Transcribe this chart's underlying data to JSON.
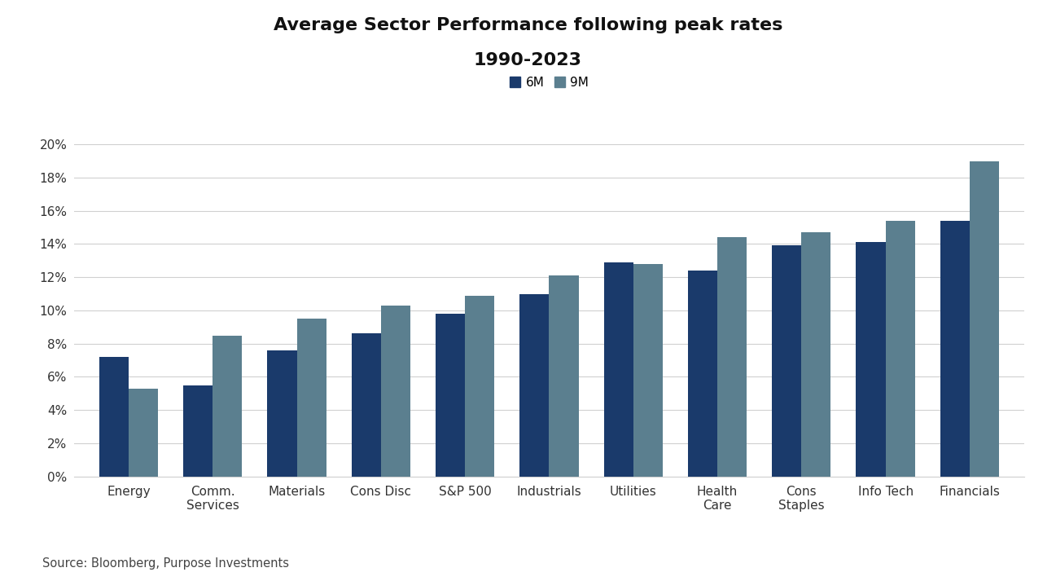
{
  "title_line1": "Average Sector Performance following peak rates",
  "title_line2": "1990-2023",
  "categories": [
    "Energy",
    "Comm.\nServices",
    "Materials",
    "Cons Disc",
    "S&P 500",
    "Industrials",
    "Utilities",
    "Health\nCare",
    "Cons\nStaples",
    "Info Tech",
    "Financials"
  ],
  "values_6m": [
    7.2,
    5.5,
    7.6,
    8.6,
    9.8,
    11.0,
    12.9,
    12.4,
    13.9,
    14.1,
    15.4
  ],
  "values_9m": [
    5.3,
    8.5,
    9.5,
    10.3,
    10.9,
    12.1,
    12.8,
    14.4,
    14.7,
    15.4,
    19.0
  ],
  "color_6m": "#1a3a6b",
  "color_9m": "#5b7f8f",
  "ylabel_ticks": [
    0,
    2,
    4,
    6,
    8,
    10,
    12,
    14,
    16,
    18,
    20
  ],
  "ylabel_labels": [
    "0%",
    "2%",
    "4%",
    "6%",
    "8%",
    "10%",
    "12%",
    "14%",
    "16%",
    "18%",
    "20%"
  ],
  "ylim": [
    0,
    21
  ],
  "legend_6m": "6M",
  "legend_9m": "9M",
  "source_text": "Source: Bloomberg, Purpose Investments",
  "bg_color": "#ffffff",
  "grid_color": "#d0d0d0",
  "bar_width": 0.35,
  "title_fontsize": 16,
  "tick_fontsize": 11,
  "source_fontsize": 10.5
}
